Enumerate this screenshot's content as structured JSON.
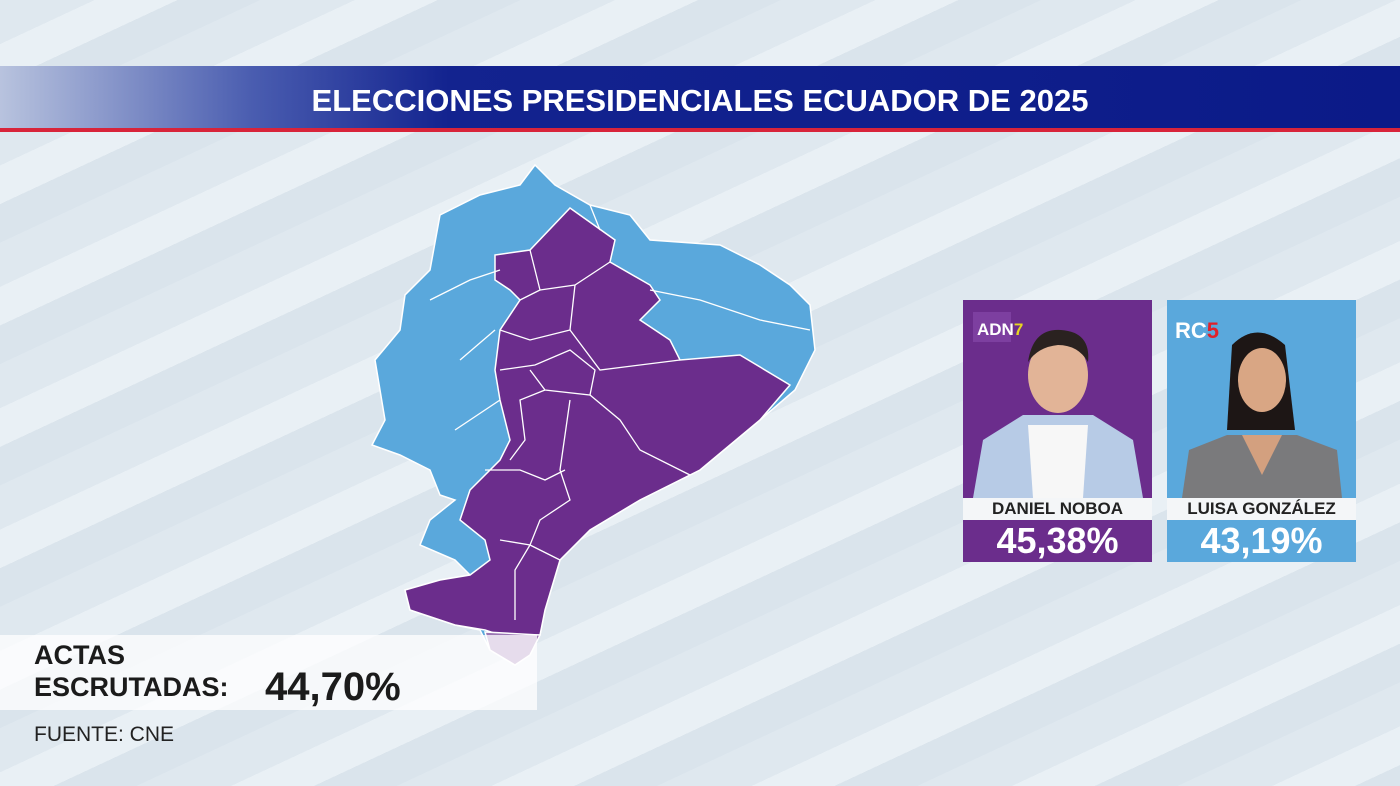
{
  "header": {
    "title": "ELECCIONES PRESIDENCIALES ECUADOR DE 2025"
  },
  "colors": {
    "noboa": "#6b2d8c",
    "gonzalez": "#5aa8dc",
    "header": "#0b1a88",
    "accent": "#d8243a"
  },
  "candidates": [
    {
      "name": "DANIEL NOBOA",
      "percent": "45,38%",
      "party_logo": "ADN7",
      "color": "#6b2d8c"
    },
    {
      "name": "LUISA GONZÁLEZ",
      "percent": "43,19%",
      "party_logo": "RC5",
      "color": "#5aa8dc"
    }
  ],
  "actas": {
    "label_line1": "ACTAS",
    "label_line2": "ESCRUTADAS:",
    "value": "44,70%"
  },
  "source": "FUENTE: CNE"
}
